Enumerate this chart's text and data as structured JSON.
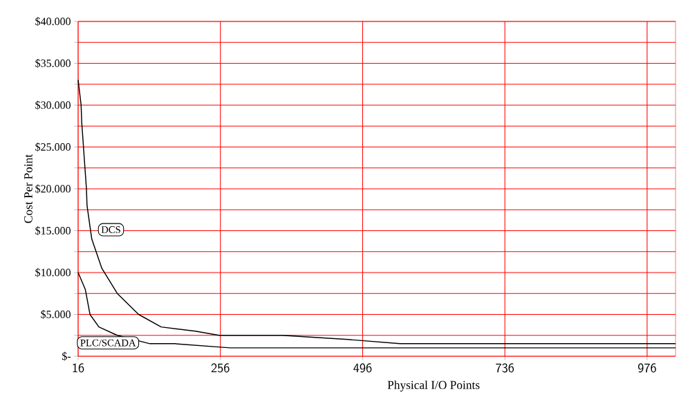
{
  "chart_data": {
    "type": "line",
    "xlabel": "Physical I/O Points",
    "ylabel": "Cost Per Point",
    "xlim": [
      16,
      1024
    ],
    "xticks": [
      16,
      256,
      496,
      736,
      976
    ],
    "ylim": [
      0,
      40000
    ],
    "yticks": [
      {
        "value": 0,
        "label": "$-"
      },
      {
        "value": 2500,
        "label": null
      },
      {
        "value": 5000,
        "label": "$5.000"
      },
      {
        "value": 7500,
        "label": null
      },
      {
        "value": 10000,
        "label": "$10.000"
      },
      {
        "value": 12500,
        "label": null
      },
      {
        "value": 15000,
        "label": "$15.000"
      },
      {
        "value": 17500,
        "label": null
      },
      {
        "value": 20000,
        "label": "$20.000"
      },
      {
        "value": 22500,
        "label": null
      },
      {
        "value": 25000,
        "label": "$25.000"
      },
      {
        "value": 27500,
        "label": null
      },
      {
        "value": 30000,
        "label": "$30.000"
      },
      {
        "value": 32500,
        "label": null
      },
      {
        "value": 35000,
        "label": "$35.000"
      },
      {
        "value": 37500,
        "label": null
      },
      {
        "value": 40000,
        "label": "$40.000"
      }
    ],
    "grid": true,
    "legend": "left",
    "marker": "none",
    "line_style": "solid",
    "series": [
      {
        "name": "DCS",
        "color": "#000000",
        "x": [
          16,
          21,
          22,
          30,
          31,
          39,
          56,
          82,
          118,
          156,
          214,
          254,
          269,
          360,
          472,
          559,
          736,
          878,
          1024
        ],
        "values": [
          33000,
          30000,
          28000,
          20000,
          18000,
          14000,
          10500,
          7500,
          5000,
          3500,
          3000,
          2500,
          2500,
          2500,
          2000,
          1500,
          1500,
          1500,
          1500
        ]
      },
      {
        "name": "PLC/SCADA",
        "color": "#000000",
        "x": [
          16,
          28,
          36,
          51,
          82,
          137,
          179,
          273,
          386,
          736,
          1024
        ],
        "values": [
          10000,
          8000,
          5000,
          3500,
          2500,
          1500,
          1500,
          1000,
          1000,
          1000,
          1000
        ]
      }
    ]
  }
}
